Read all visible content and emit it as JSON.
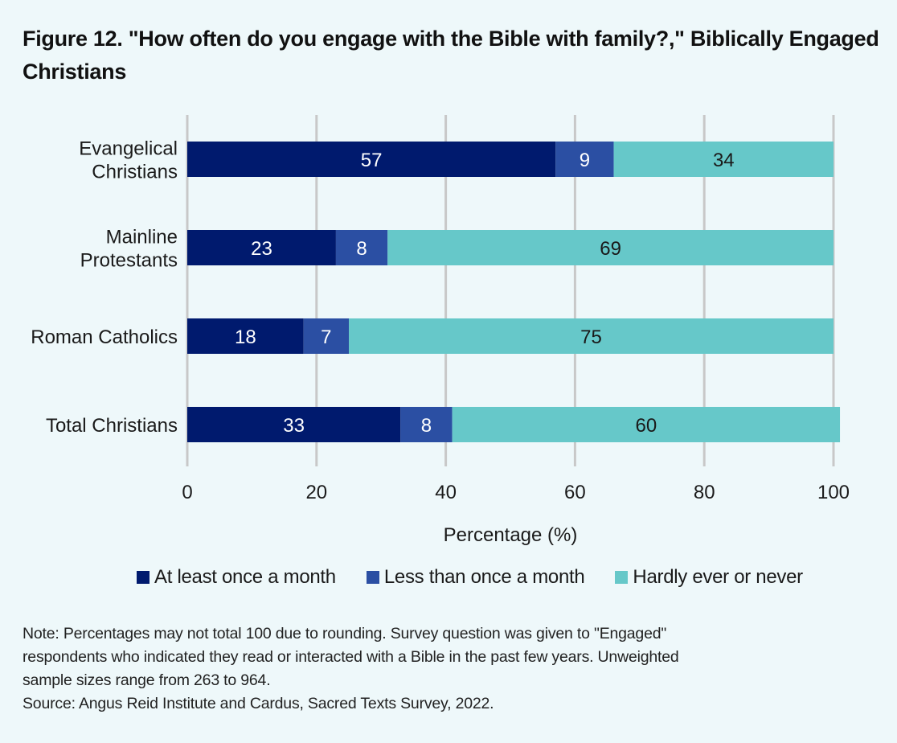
{
  "title": "Figure 12. \"How often do you engage with the Bible with family?,\" Biblically Engaged Christians",
  "chart_data": {
    "type": "bar",
    "orientation": "horizontal",
    "stacked": true,
    "title": "Figure 12. \"How often do you engage with the Bible with family?,\" Biblically Engaged Christians",
    "categories": [
      "Evangelical Christians",
      "Mainline Protestants",
      "Roman Catholics",
      "Total Christians"
    ],
    "category_lines": [
      [
        "Evangelical",
        "Christians"
      ],
      [
        "Mainline",
        "Protestants"
      ],
      [
        "Roman Catholics"
      ],
      [
        "Total Christians"
      ]
    ],
    "series": [
      {
        "name": "At least once a month",
        "color": "#001a6e",
        "label_color": "#ffffff",
        "values": [
          57,
          23,
          18,
          33
        ]
      },
      {
        "name": "Less than once a month",
        "color": "#2b4fa3",
        "label_color": "#ffffff",
        "values": [
          9,
          8,
          7,
          8
        ]
      },
      {
        "name": "Hardly ever or never",
        "color": "#66c8c9",
        "label_color": "#1a1a1a",
        "values": [
          34,
          69,
          75,
          60
        ]
      }
    ],
    "xlabel": "Percentage (%)",
    "ylabel": "",
    "xlim": [
      0,
      100
    ],
    "xticks": [
      0,
      20,
      40,
      60,
      80,
      100
    ],
    "grid": true,
    "legend_position": "bottom"
  },
  "notes": [
    "Note: Percentages may not total 100 due to rounding. Survey question was given to \"Engaged\"",
    "respondents who indicated they read or interacted with a Bible in the past few years. Unweighted",
    "sample sizes range from 263 to 964.",
    "Source: Angus Reid Institute and Cardus, Sacred Texts Survey, 2022."
  ]
}
